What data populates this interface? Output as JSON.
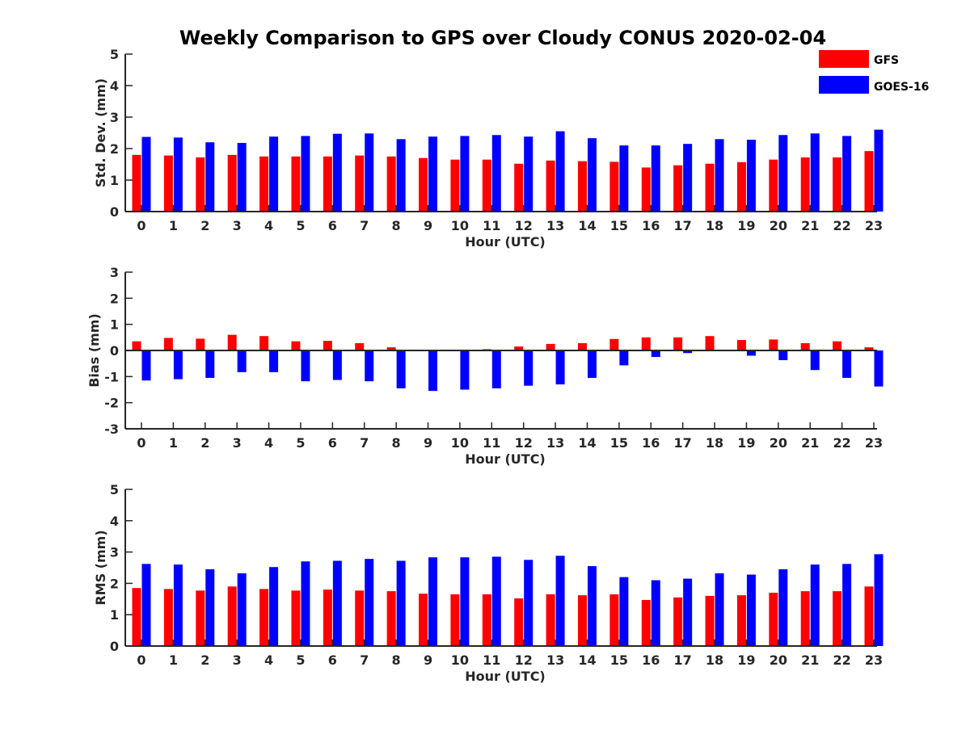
{
  "title": "Weekly Comparison to GPS over Cloudy CONUS 2020-02-04",
  "legend": [
    {
      "name": "GFS",
      "color": "#ff0000"
    },
    {
      "name": "GOES-16",
      "color": "#0000ff"
    }
  ],
  "chart_data": [
    {
      "type": "bar",
      "xlabel": "Hour (UTC)",
      "ylabel": "Std. Dev. (mm)",
      "ylim": [
        0,
        5
      ],
      "yticks": [
        0,
        1,
        2,
        3,
        4,
        5
      ],
      "categories": [
        "0",
        "1",
        "2",
        "3",
        "4",
        "5",
        "6",
        "7",
        "8",
        "9",
        "10",
        "11",
        "12",
        "13",
        "14",
        "15",
        "16",
        "17",
        "18",
        "19",
        "20",
        "21",
        "22",
        "23"
      ],
      "series": [
        {
          "name": "GFS",
          "color": "#ff0000",
          "values": [
            1.8,
            1.78,
            1.72,
            1.8,
            1.75,
            1.75,
            1.75,
            1.78,
            1.75,
            1.7,
            1.65,
            1.65,
            1.52,
            1.62,
            1.6,
            1.58,
            1.4,
            1.47,
            1.52,
            1.57,
            1.65,
            1.72,
            1.72,
            1.92
          ]
        },
        {
          "name": "GOES-16",
          "color": "#0000ff",
          "values": [
            2.37,
            2.35,
            2.2,
            2.18,
            2.38,
            2.4,
            2.47,
            2.48,
            2.3,
            2.38,
            2.4,
            2.43,
            2.38,
            2.55,
            2.33,
            2.1,
            2.1,
            2.15,
            2.3,
            2.28,
            2.43,
            2.48,
            2.4,
            2.6
          ]
        }
      ]
    },
    {
      "type": "bar",
      "xlabel": "Hour (UTC)",
      "ylabel": "Bias (mm)",
      "ylim": [
        -3,
        3
      ],
      "yticks": [
        -3,
        -2,
        -1,
        0,
        1,
        2,
        3
      ],
      "categories": [
        "0",
        "1",
        "2",
        "3",
        "4",
        "5",
        "6",
        "7",
        "8",
        "9",
        "10",
        "11",
        "12",
        "13",
        "14",
        "15",
        "16",
        "17",
        "18",
        "19",
        "20",
        "21",
        "22",
        "23"
      ],
      "series": [
        {
          "name": "GFS",
          "color": "#ff0000",
          "values": [
            0.35,
            0.48,
            0.45,
            0.6,
            0.55,
            0.35,
            0.37,
            0.28,
            0.12,
            0.0,
            0.0,
            0.05,
            0.15,
            0.25,
            0.28,
            0.44,
            0.5,
            0.5,
            0.55,
            0.4,
            0.42,
            0.28,
            0.35,
            0.12
          ]
        },
        {
          "name": "GOES-16",
          "color": "#0000ff",
          "values": [
            -1.15,
            -1.1,
            -1.05,
            -0.83,
            -0.83,
            -1.18,
            -1.13,
            -1.18,
            -1.45,
            -1.55,
            -1.5,
            -1.45,
            -1.35,
            -1.3,
            -1.05,
            -0.57,
            -0.25,
            -0.1,
            -0.03,
            -0.2,
            -0.37,
            -0.75,
            -1.05,
            -1.38
          ]
        }
      ]
    },
    {
      "type": "bar",
      "xlabel": "Hour (UTC)",
      "ylabel": "RMS (mm)",
      "ylim": [
        0,
        5
      ],
      "yticks": [
        0,
        1,
        2,
        3,
        4,
        5
      ],
      "categories": [
        "0",
        "1",
        "2",
        "3",
        "4",
        "5",
        "6",
        "7",
        "8",
        "9",
        "10",
        "11",
        "12",
        "13",
        "14",
        "15",
        "16",
        "17",
        "18",
        "19",
        "20",
        "21",
        "22",
        "23"
      ],
      "series": [
        {
          "name": "GFS",
          "color": "#ff0000",
          "values": [
            1.85,
            1.82,
            1.77,
            1.9,
            1.82,
            1.77,
            1.8,
            1.77,
            1.75,
            1.67,
            1.65,
            1.65,
            1.52,
            1.65,
            1.62,
            1.65,
            1.47,
            1.55,
            1.6,
            1.62,
            1.7,
            1.75,
            1.75,
            1.9
          ]
        },
        {
          "name": "GOES-16",
          "color": "#0000ff",
          "values": [
            2.62,
            2.6,
            2.45,
            2.32,
            2.52,
            2.7,
            2.72,
            2.78,
            2.72,
            2.83,
            2.83,
            2.85,
            2.75,
            2.88,
            2.55,
            2.2,
            2.1,
            2.15,
            2.32,
            2.28,
            2.45,
            2.6,
            2.62,
            2.93
          ]
        }
      ]
    }
  ]
}
